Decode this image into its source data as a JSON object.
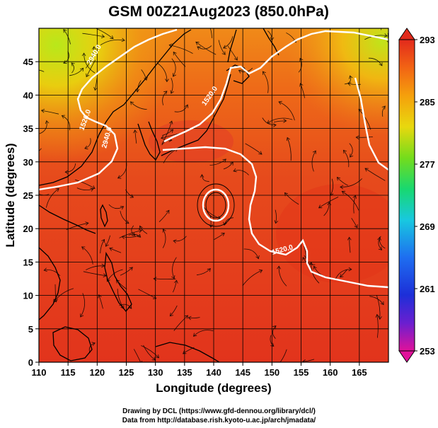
{
  "figure": {
    "title": "GSM 00Z21Aug2023 (850.0hPa)",
    "xlabel": "Longitude (degrees)",
    "ylabel": "Latitude  (degrees)",
    "credit_line1": "Drawing by DCL (https://www.gfd-dennou.org/library/dcl/)",
    "credit_line2": "Data from http://database.rish.kyoto-u.ac.jp/arch/jmadata/"
  },
  "axes": {
    "x_ticks": [
      "110",
      "115",
      "120",
      "125",
      "130",
      "135",
      "140",
      "145",
      "150",
      "155",
      "160",
      "165"
    ],
    "y_ticks": [
      "0",
      "5",
      "10",
      "15",
      "20",
      "25",
      "30",
      "35",
      "40",
      "45"
    ],
    "x_range": [
      110,
      170
    ],
    "y_range": [
      0,
      50
    ]
  },
  "colorbar": {
    "tick_labels": [
      "293",
      "285",
      "277",
      "269",
      "261",
      "253"
    ],
    "range": [
      253,
      293
    ],
    "colors": [
      "#e0129a",
      "#6a1fd0",
      "#1d2fd8",
      "#1e8ef0",
      "#18d8c8",
      "#22d25a",
      "#a8e61c",
      "#f0d80e",
      "#f5a00c",
      "#f26414",
      "#e22a1c",
      "#d81220"
    ]
  },
  "contours": {
    "labels": [
      "2940.0",
      "2940.0",
      "1520.0",
      "1520.0",
      "1520.0"
    ],
    "color": "#ffffff"
  },
  "colors": {
    "field_warm": "#e8361e",
    "field_orange": "#f26a18",
    "field_yellow": "#f0a012",
    "field_green": "#a8e21c",
    "streamline": "#000000"
  }
}
